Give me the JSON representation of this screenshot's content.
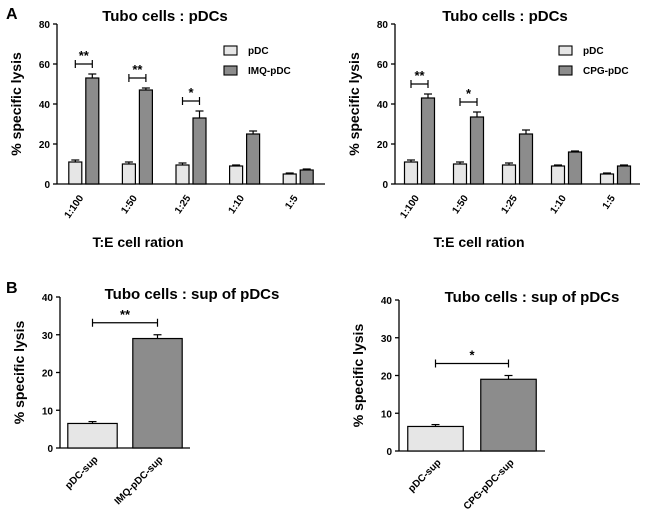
{
  "panel_labels": [
    "A",
    "B"
  ],
  "colors": {
    "light": "#e6e6e6",
    "dark": "#8c8c8c",
    "stroke": "#000000"
  },
  "chart_data": [
    {
      "type": "bar",
      "title": "Tubo cells : pDCs",
      "xlabel": "T:E cell ration",
      "ylabel": "% specific lysis",
      "ylim": [
        0,
        80
      ],
      "yticks": [
        "0",
        "20",
        "40",
        "60",
        "80"
      ],
      "categories": [
        "1:100",
        "1:50",
        "1:25",
        "1:10",
        "1:5"
      ],
      "series": [
        {
          "name": "pDC",
          "values": [
            11,
            10,
            9.5,
            9,
            5
          ],
          "errors": [
            1,
            1,
            1,
            0.5,
            0.5
          ]
        },
        {
          "name": "IMQ-pDC",
          "values": [
            53,
            47,
            33,
            25,
            7
          ],
          "errors": [
            2,
            1,
            3.5,
            1.5,
            0.5
          ]
        }
      ],
      "significance": [
        {
          "category": "1:100",
          "label": "**"
        },
        {
          "category": "1:50",
          "label": "**"
        },
        {
          "category": "1:25",
          "label": "*"
        }
      ]
    },
    {
      "type": "bar",
      "title": "Tubo cells : pDCs",
      "xlabel": "T:E cell ration",
      "ylabel": "% specific lysis",
      "ylim": [
        0,
        80
      ],
      "yticks": [
        "0",
        "20",
        "40",
        "60",
        "80"
      ],
      "categories": [
        "1:100",
        "1:50",
        "1:25",
        "1:10",
        "1:5"
      ],
      "series": [
        {
          "name": "pDC",
          "values": [
            11,
            10,
            9.5,
            9,
            5
          ],
          "errors": [
            1,
            1,
            1,
            0.5,
            0.5
          ]
        },
        {
          "name": "CPG-pDC",
          "values": [
            43,
            33.5,
            25,
            16,
            9
          ],
          "errors": [
            2,
            2.5,
            2,
            0.5,
            0.5
          ]
        }
      ],
      "significance": [
        {
          "category": "1:100",
          "label": "**"
        },
        {
          "category": "1:50",
          "label": "*"
        }
      ]
    },
    {
      "type": "bar",
      "title": "Tubo cells : sup of pDCs",
      "xlabel": "",
      "ylabel": "% specific lysis",
      "ylim": [
        0,
        40
      ],
      "yticks": [
        "0",
        "10",
        "20",
        "30",
        "40"
      ],
      "categories": [
        "pDC-sup",
        "IMQ-pDC-sup"
      ],
      "values": [
        6.5,
        29
      ],
      "errors": [
        0.5,
        1
      ],
      "significance": [
        {
          "label": "**"
        }
      ]
    },
    {
      "type": "bar",
      "title": "Tubo cells : sup of pDCs",
      "xlabel": "",
      "ylabel": "% specific lysis",
      "ylim": [
        0,
        40
      ],
      "yticks": [
        "0",
        "10",
        "20",
        "30",
        "40"
      ],
      "categories": [
        "pDC-sup",
        "CPG-pDC-sup"
      ],
      "values": [
        6.5,
        19
      ],
      "errors": [
        0.5,
        1
      ],
      "significance": [
        {
          "label": "*"
        }
      ]
    }
  ]
}
